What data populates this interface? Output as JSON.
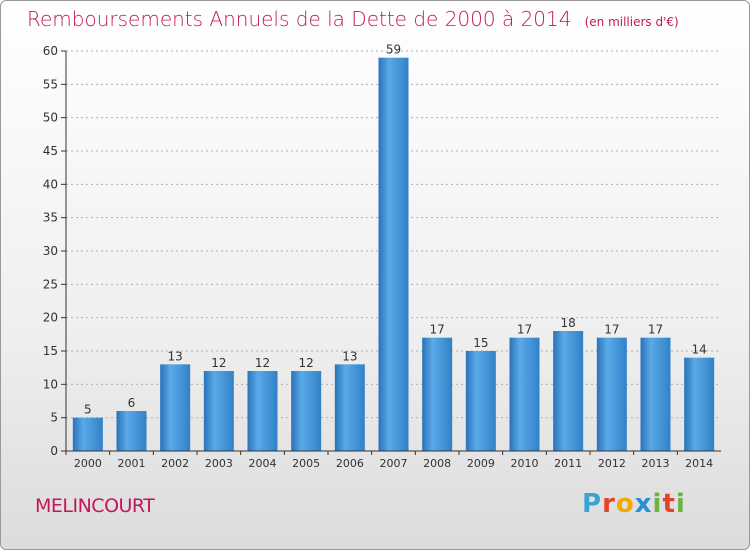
{
  "title": "Remboursements Annuels de la Dette de 2000 à 2014",
  "unit": "(en milliers d'€)",
  "commune": "MELINCOURT",
  "logo": {
    "letters": [
      "P",
      "r",
      "o",
      "x",
      "i",
      "t",
      "i"
    ],
    "colors": [
      "#3ba3d0",
      "#e0442b",
      "#f2a900",
      "#2a8fd4",
      "#6db33f",
      "#e0442b",
      "#6db33f"
    ]
  },
  "colors": {
    "bar": "#3d8fd6",
    "bar_light": "#5aaae8",
    "bar_dark": "#2a72b8",
    "title": "#c2185b",
    "axis": "#333333",
    "grid": "#b0b0b0"
  },
  "chart_data": {
    "type": "bar",
    "title": "Remboursements Annuels de la Dette de 2000 à 2014",
    "xlabel": "",
    "ylabel": "",
    "categories": [
      "2000",
      "2001",
      "2002",
      "2003",
      "2004",
      "2005",
      "2006",
      "2007",
      "2008",
      "2009",
      "2010",
      "2011",
      "2012",
      "2013",
      "2014"
    ],
    "values": [
      5,
      6,
      13,
      12,
      12,
      12,
      13,
      59,
      17,
      15,
      17,
      18,
      17,
      17,
      14
    ],
    "ylim": [
      0,
      60
    ],
    "yticks": [
      0,
      5,
      10,
      15,
      20,
      25,
      30,
      35,
      40,
      45,
      50,
      55,
      60
    ],
    "grid": true,
    "data_labels": true
  }
}
